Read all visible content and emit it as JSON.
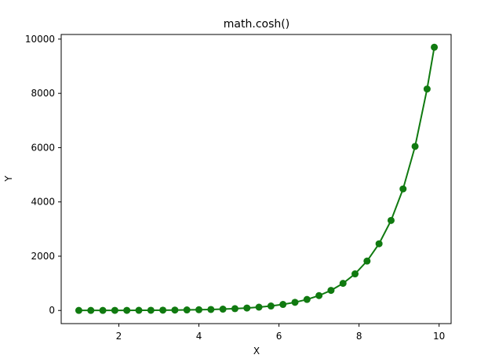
{
  "chart_data": {
    "type": "line",
    "title": "math.cosh()",
    "xlabel": "X",
    "ylabel": "Y",
    "xlim": [
      0.56,
      10.3
    ],
    "ylim": [
      -484,
      10170
    ],
    "xticks": [
      2,
      4,
      6,
      8,
      10
    ],
    "yticks": [
      0,
      2000,
      4000,
      6000,
      8000,
      10000
    ],
    "grid": false,
    "series": [
      {
        "color": "#107a10",
        "marker": "circle",
        "x": [
          1.0,
          1.3,
          1.6,
          1.9,
          2.2,
          2.5,
          2.8,
          3.1,
          3.4,
          3.7,
          4.0,
          4.3,
          4.6,
          4.9,
          5.2,
          5.5,
          5.8,
          6.1,
          6.4,
          6.7,
          7.0,
          7.3,
          7.6,
          7.9,
          8.2,
          8.5,
          8.8,
          9.1,
          9.4,
          9.7,
          9.88
        ],
        "y": [
          1.54,
          1.97,
          2.58,
          3.42,
          4.57,
          6.13,
          8.25,
          11.1,
          15.0,
          20.2,
          27.3,
          36.9,
          49.7,
          67.1,
          90.6,
          122.3,
          165.2,
          223.0,
          300.9,
          406.2,
          548.3,
          740.2,
          999.2,
          1348.8,
          1820.8,
          2457.9,
          3317.9,
          4478.8,
          6045.9,
          8161.3,
          9700
        ]
      }
    ]
  }
}
